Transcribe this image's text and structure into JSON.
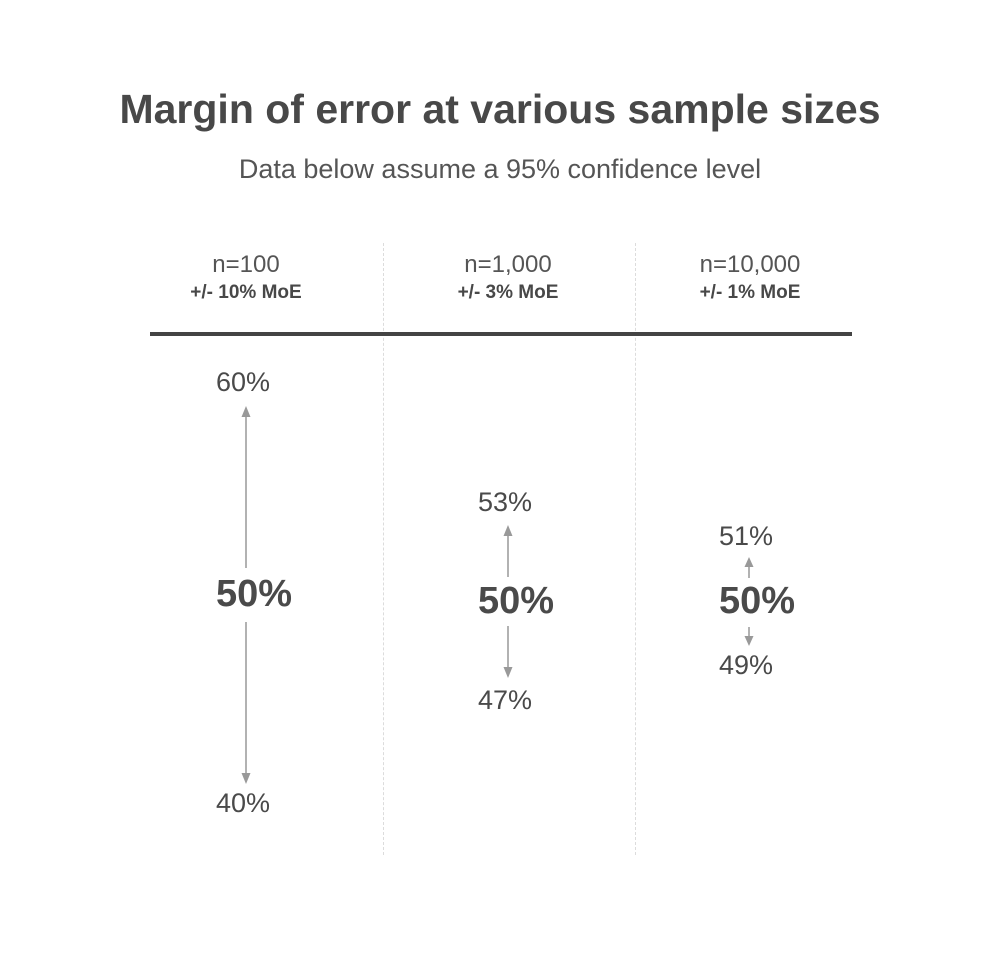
{
  "title": "Margin of error at various sample sizes",
  "subtitle": "Data below assume a 95% confidence level",
  "columns": [
    {
      "sample": "n=100",
      "moe_label": "+/- 10% MoE",
      "upper": "60%",
      "center": "50%",
      "lower": "40%"
    },
    {
      "sample": "n=1,000",
      "moe_label": "+/- 3% MoE",
      "upper": "53%",
      "center": "50%",
      "lower": "47%"
    },
    {
      "sample": "n=10,000",
      "moe_label": "+/- 1% MoE",
      "upper": "51%",
      "center": "50%",
      "lower": "49%"
    }
  ],
  "colors": {
    "arrow": "#999999",
    "rule": "#444444",
    "divider": "#dcdcdc"
  }
}
